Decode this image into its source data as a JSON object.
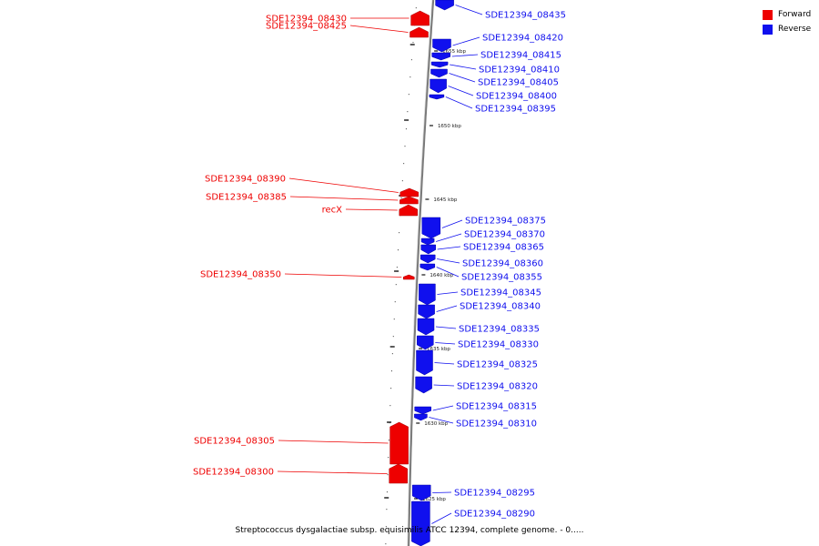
{
  "caption": "Streptococcus dysgalactiae subsp. equisimilis ATCC 12394, complete genome. - 0.....",
  "legend": [
    {
      "label": "Forward",
      "color": "#ee0000"
    },
    {
      "label": "Reverse",
      "color": "#1010ee"
    }
  ],
  "colors": {
    "forward": "#ee0000",
    "reverse": "#1010ee",
    "backbone": "#7a7a7a"
  },
  "scale_labels": [
    "1655 kbp",
    "1650 kbp",
    "1645 kbp",
    "1640 kbp",
    "1635 kbp",
    "1630 kbp",
    "1625 kbp"
  ],
  "genes": [
    {
      "label": "SDE12394_08435",
      "strand": "reverse"
    },
    {
      "label": "SDE12394_08430",
      "strand": "forward"
    },
    {
      "label": "SDE12394_08425",
      "strand": "forward"
    },
    {
      "label": "SDE12394_08420",
      "strand": "reverse"
    },
    {
      "label": "SDE12394_08415",
      "strand": "reverse"
    },
    {
      "label": "SDE12394_08410",
      "strand": "reverse"
    },
    {
      "label": "SDE12394_08405",
      "strand": "reverse"
    },
    {
      "label": "SDE12394_08400",
      "strand": "reverse"
    },
    {
      "label": "SDE12394_08395",
      "strand": "reverse"
    },
    {
      "label": "SDE12394_08390",
      "strand": "forward"
    },
    {
      "label": "SDE12394_08385",
      "strand": "forward"
    },
    {
      "label": "recX",
      "strand": "forward"
    },
    {
      "label": "SDE12394_08375",
      "strand": "reverse"
    },
    {
      "label": "SDE12394_08370",
      "strand": "reverse"
    },
    {
      "label": "SDE12394_08365",
      "strand": "reverse"
    },
    {
      "label": "SDE12394_08360",
      "strand": "reverse"
    },
    {
      "label": "SDE12394_08355",
      "strand": "reverse"
    },
    {
      "label": "SDE12394_08350",
      "strand": "forward"
    },
    {
      "label": "SDE12394_08345",
      "strand": "reverse"
    },
    {
      "label": "SDE12394_08340",
      "strand": "reverse"
    },
    {
      "label": "SDE12394_08335",
      "strand": "reverse"
    },
    {
      "label": "SDE12394_08330",
      "strand": "reverse"
    },
    {
      "label": "SDE12394_08325",
      "strand": "reverse"
    },
    {
      "label": "SDE12394_08320",
      "strand": "reverse"
    },
    {
      "label": "SDE12394_08315",
      "strand": "reverse"
    },
    {
      "label": "SDE12394_08310",
      "strand": "reverse"
    },
    {
      "label": "SDE12394_08305",
      "strand": "forward"
    },
    {
      "label": "SDE12394_08300",
      "strand": "forward"
    },
    {
      "label": "SDE12394_08295",
      "strand": "reverse"
    },
    {
      "label": "SDE12394_08290",
      "strand": "reverse"
    }
  ]
}
